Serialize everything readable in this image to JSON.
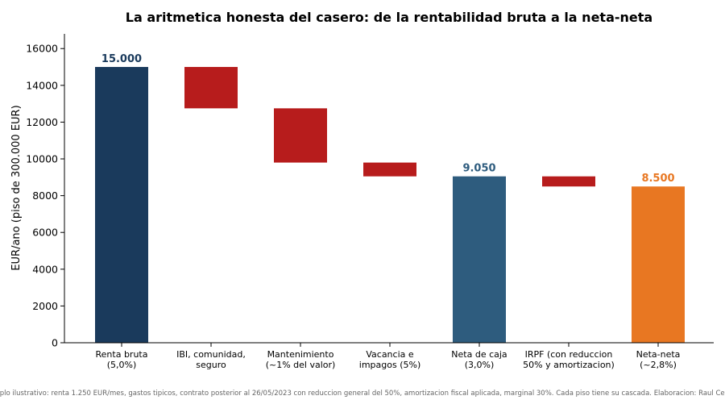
{
  "chart_data": {
    "type": "bar",
    "subtype": "waterfall",
    "title": "La aritmetica honesta del casero: de la rentabilidad bruta a la neta-neta",
    "xlabel": "",
    "ylabel": "EUR/ano (piso de 300.000 EUR)",
    "ylim": [
      0,
      16800
    ],
    "yticks": [
      0,
      2000,
      4000,
      6000,
      8000,
      10000,
      12000,
      14000,
      16000
    ],
    "grid": false,
    "categories": [
      [
        "Renta bruta",
        "(5,0%)"
      ],
      [
        "IBI, comunidad,",
        "seguro"
      ],
      [
        "Mantenimiento",
        "(~1% del valor)"
      ],
      [
        "Vacancia e",
        "impagos (5%)"
      ],
      [
        "Neta de caja",
        "(3,0%)"
      ],
      [
        "IRPF (con reduccion",
        "50% y amortizacion)"
      ],
      [
        "Neta-neta",
        "(~2,8%)"
      ]
    ],
    "bars": [
      {
        "kind": "total",
        "bottom": 0,
        "top": 15000,
        "color": "#1a3a5c",
        "label": "15.000",
        "label_color": "#1a3a5c"
      },
      {
        "kind": "decrease",
        "bottom": 12750,
        "top": 15000,
        "color": "#b71c1c",
        "label": "",
        "label_color": ""
      },
      {
        "kind": "decrease",
        "bottom": 9800,
        "top": 12750,
        "color": "#b71c1c",
        "label": "",
        "label_color": ""
      },
      {
        "kind": "decrease",
        "bottom": 9050,
        "top": 9800,
        "color": "#b71c1c",
        "label": "",
        "label_color": ""
      },
      {
        "kind": "total",
        "bottom": 0,
        "top": 9050,
        "color": "#2e5c7e",
        "label": "9.050",
        "label_color": "#2e5c7e"
      },
      {
        "kind": "decrease",
        "bottom": 8500,
        "top": 9050,
        "color": "#b71c1c",
        "label": "",
        "label_color": ""
      },
      {
        "kind": "total",
        "bottom": 0,
        "top": 8500,
        "color": "#e87722",
        "label": "8.500",
        "label_color": "#e87722"
      }
    ]
  },
  "footnote": "Ejemplo ilustrativo: renta 1.250 EUR/mes, gastos tipicos, contrato posterior al 26/05/2023 con reduccion general del 50%, amortizacion fiscal aplicada, marginal 30%. Cada piso tiene su cascada. Elaboracion: Raul Cebrian"
}
